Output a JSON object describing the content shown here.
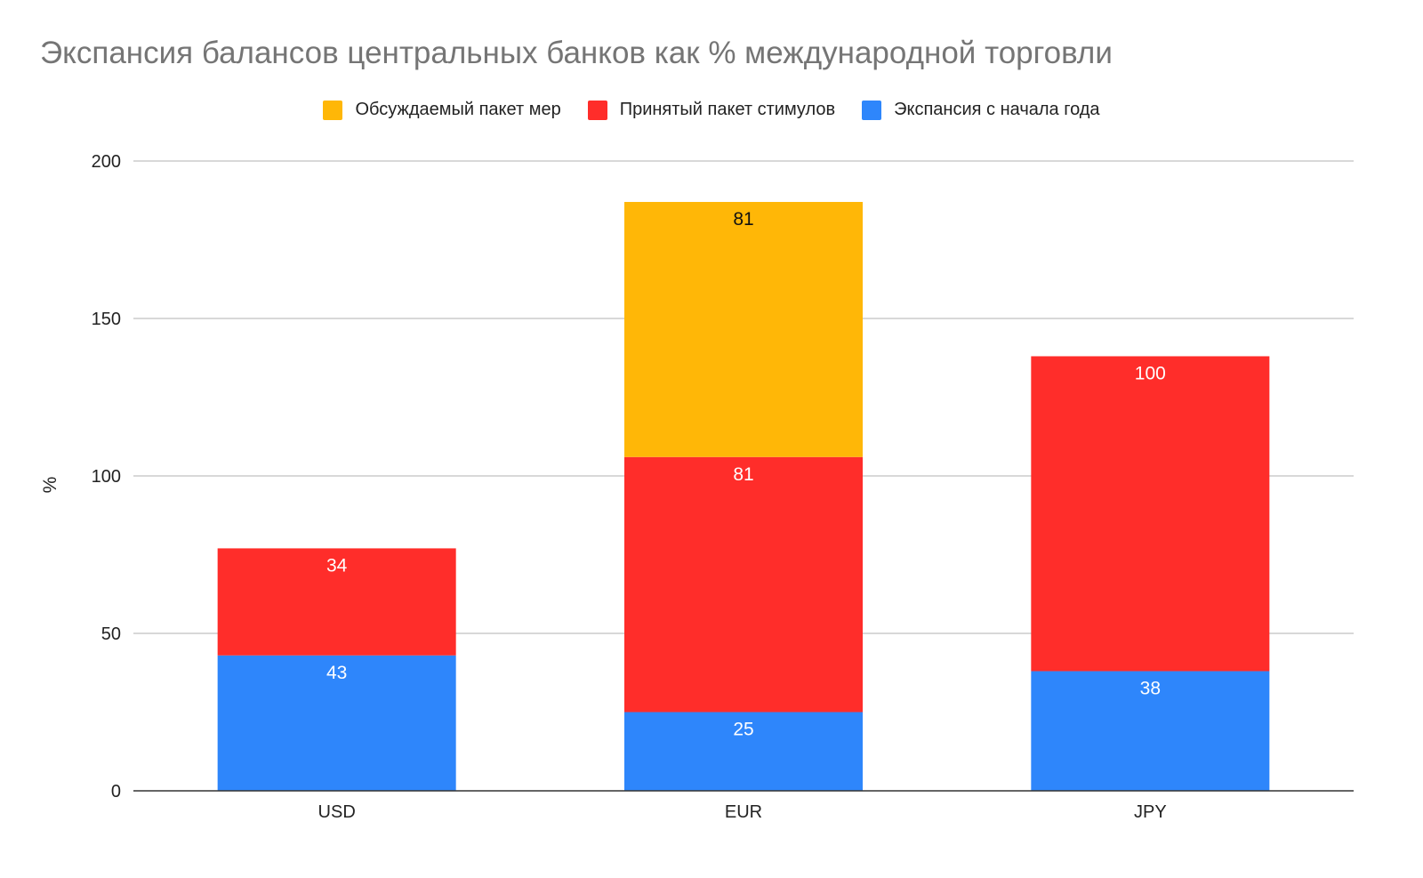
{
  "chart_data": {
    "type": "bar",
    "stacked": true,
    "title": "Экспансия балансов центральных банков как % международной торговли",
    "xlabel": "",
    "ylabel": "%",
    "categories": [
      "USD",
      "EUR",
      "JPY"
    ],
    "ylim": [
      0,
      200
    ],
    "yticks": [
      0,
      50,
      100,
      150,
      200
    ],
    "grid": true,
    "legend_position": "top-center",
    "series": [
      {
        "name": "Экспансия с начала года",
        "color": "#2E86FB",
        "values": [
          43,
          25,
          38
        ],
        "labels": [
          "43",
          "25",
          "38"
        ],
        "label_color": "#ffffff"
      },
      {
        "name": "Принятый пакет стимулов",
        "color": "#FF2D2A",
        "values": [
          34,
          81,
          100
        ],
        "labels": [
          "34",
          "81",
          "100"
        ],
        "label_color": "#ffffff"
      },
      {
        "name": "Обсуждаемый пакет мер",
        "color": "#FFB707",
        "values": [
          0,
          81,
          0
        ],
        "labels": [
          "",
          "81",
          ""
        ],
        "label_color": "#111111"
      }
    ],
    "legend_order": [
      2,
      1,
      0
    ]
  }
}
